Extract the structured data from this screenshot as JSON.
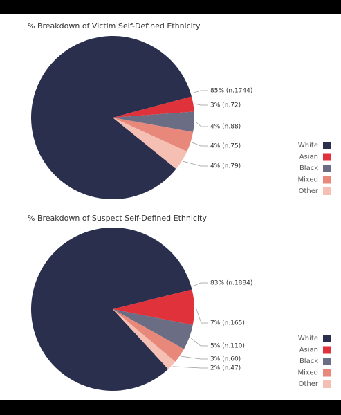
{
  "chart_data": [
    {
      "type": "pie",
      "title": "% Breakdown of Victim Self-Defined Ethnicity",
      "categories": [
        "White",
        "Asian",
        "Black",
        "Mixed",
        "Other"
      ],
      "values": [
        85,
        3,
        4,
        4,
        4
      ],
      "value_labels": [
        "85% (n.1744)",
        "3% (n.72)",
        "4% (n.88)",
        "4% (n.75)",
        "4% (n.79)"
      ],
      "colors": [
        "#2b2f4e",
        "#e0323a",
        "#6b6d85",
        "#e8887a",
        "#f5bfb3"
      ],
      "legend": "right"
    },
    {
      "type": "pie",
      "title": "% Breakdown of Suspect Self-Defined Ethnicity",
      "categories": [
        "White",
        "Asian",
        "Black",
        "Mixed",
        "Other"
      ],
      "values": [
        83,
        7,
        5,
        3,
        2
      ],
      "value_labels": [
        "83% (n.1884)",
        "7% (n.165)",
        "5% (n.110)",
        "3% (n.60)",
        "2% (n.47)"
      ],
      "colors": [
        "#2b2f4e",
        "#e0323a",
        "#6b6d85",
        "#e8887a",
        "#f5bfb3"
      ],
      "legend": "right"
    }
  ]
}
